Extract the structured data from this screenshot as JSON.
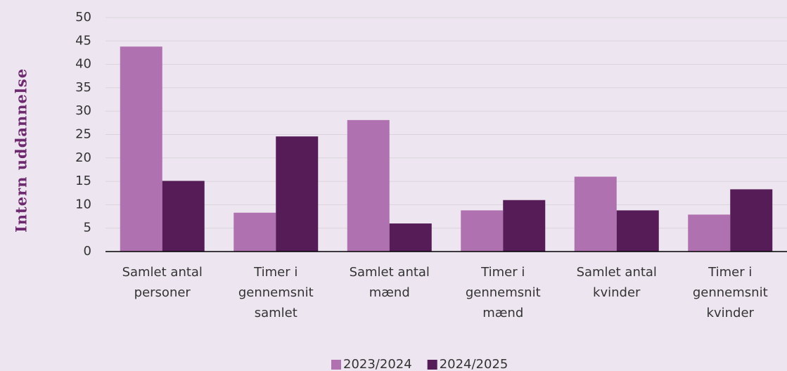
{
  "chart_data": {
    "type": "bar",
    "y_label": "Intern uddannelse",
    "categories": [
      [
        "Samlet antal",
        "personer"
      ],
      [
        "Timer i",
        "gennemsnit",
        "samlet"
      ],
      [
        "Samlet antal",
        "mænd"
      ],
      [
        "Timer i",
        "gennemsnit",
        "mænd"
      ],
      [
        "Samlet antal",
        "kvinder"
      ],
      [
        "Timer i",
        "gennemsnit",
        "kvinder"
      ]
    ],
    "series": [
      {
        "name": "2023/2024",
        "color": "#b071b0",
        "values": [
          43.8,
          8.3,
          28.1,
          8.8,
          16.0,
          7.9
        ]
      },
      {
        "name": "2024/2025",
        "color": "#561c57",
        "values": [
          15.1,
          24.6,
          6.0,
          11.0,
          8.8,
          13.3
        ]
      }
    ],
    "ylim": [
      0,
      50
    ],
    "yticks": [
      0,
      5,
      10,
      15,
      20,
      25,
      30,
      35,
      40,
      45,
      50
    ],
    "grid": true,
    "legend": "bottom"
  }
}
